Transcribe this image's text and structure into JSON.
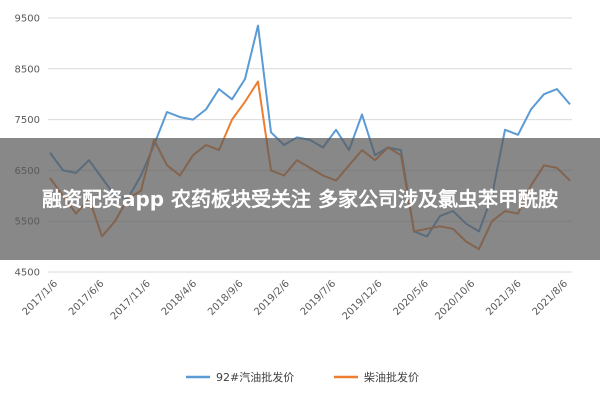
{
  "banner": {
    "title": "融资配资app 农药板块受关注 多家公司涉及氯虫苯甲酰胺"
  },
  "colors": {
    "series_gasoline": "#5b9bd5",
    "series_diesel": "#ed7d31",
    "banner_bg": "#5a5a5a",
    "grid": "#d9d9d9"
  },
  "chart_data": {
    "type": "line",
    "title": "",
    "xlabel": "",
    "ylabel": "",
    "ylim": [
      4500,
      9500
    ],
    "yticks": [
      4500,
      5500,
      6500,
      7500,
      8500,
      9500
    ],
    "x": [
      "2017/1/6",
      "2017/2/17",
      "2017/4/28",
      "2017/6/6",
      "2017/7/28",
      "2017/9/15",
      "2017/11/6",
      "2017/12/29",
      "2018/2/23",
      "2018/4/6",
      "2018/5/18",
      "2018/7/6",
      "2018/8/17",
      "2018/9/6",
      "2018/9/28",
      "2018/10/19",
      "2018/11/16",
      "2018/12/28",
      "2019/2/2",
      "2019/3/22",
      "2019/5/10",
      "2019/6/28",
      "2019/7/6",
      "2019/8/16",
      "2019/9/27",
      "2019/11/15",
      "2019/12/6",
      "2020/1/24",
      "2020/3/13",
      "2020/5/6",
      "2020/6/26",
      "2020/8/14",
      "2020/10/6",
      "2020/11/20",
      "2021/1/8",
      "2021/2/26",
      "2021/3/6",
      "2021/4/16",
      "2021/6/4",
      "2021/7/16",
      "2021/8/6"
    ],
    "x_tick_labels": [
      "2017/1/6",
      "2017/6/6",
      "2017/11/6",
      "2018/4/6",
      "2018/9/6",
      "2019/2/6",
      "2019/7/6",
      "2019/12/6",
      "2020/5/6",
      "2020/10/6",
      "2021/3/6",
      "2021/8/6"
    ],
    "series": [
      {
        "name": "92#汽油批发价",
        "color": "#5b9bd5",
        "values": [
          6850,
          6500,
          6450,
          6700,
          6350,
          6000,
          5950,
          6400,
          7000,
          7650,
          7550,
          7500,
          7700,
          8100,
          7900,
          8300,
          9350,
          7250,
          7000,
          7150,
          7100,
          6950,
          7300,
          6900,
          7600,
          6800,
          6950,
          6900,
          5300,
          5200,
          5600,
          5700,
          5450,
          5300,
          6000,
          7300,
          7200,
          7700,
          8000,
          8100,
          7800
        ]
      },
      {
        "name": "柴油批发价",
        "color": "#ed7d31",
        "values": [
          6350,
          6000,
          5650,
          5950,
          5200,
          5500,
          5950,
          6100,
          7100,
          6600,
          6400,
          6800,
          7000,
          6900,
          7500,
          7850,
          8250,
          6500,
          6400,
          6700,
          6550,
          6400,
          6300,
          6600,
          6900,
          6700,
          6950,
          6800,
          5300,
          5350,
          5400,
          5350,
          5100,
          4950,
          5500,
          5700,
          5650,
          6200,
          6600,
          6550,
          6300
        ]
      }
    ],
    "grid": true,
    "legend": "bottom-center"
  }
}
